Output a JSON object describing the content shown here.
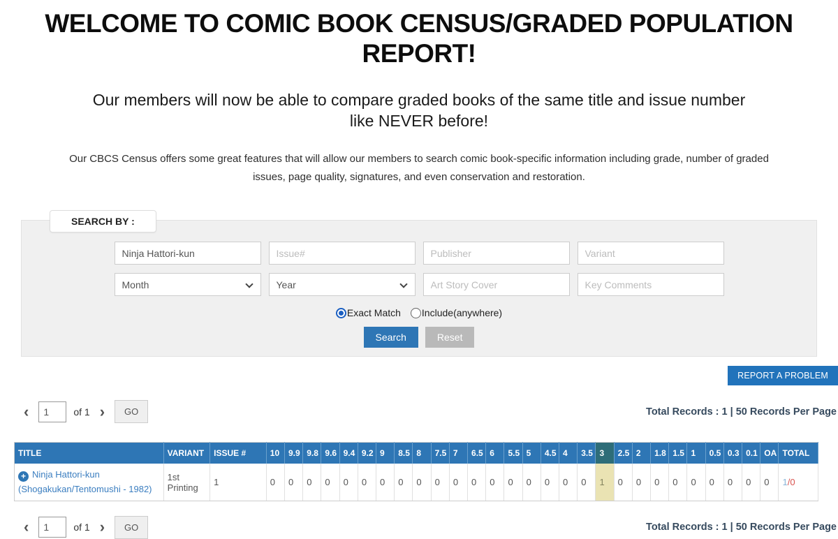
{
  "page": {
    "title": "WELCOME TO COMIC BOOK CENSUS/GRADED POPULATION REPORT!",
    "subtitle": "Our members will now be able to compare graded books of the same title and issue number like NEVER before!",
    "description": "Our CBCS Census offers some great features that will allow our members to search comic book-specific information including grade, number of graded issues, page quality, signatures, and even conservation and restoration."
  },
  "search": {
    "panel_label": "SEARCH BY :",
    "title_value": "Ninja Hattori-kun",
    "issue_placeholder": "Issue#",
    "publisher_placeholder": "Publisher",
    "variant_placeholder": "Variant",
    "month_selected": "Month",
    "year_selected": "Year",
    "art_placeholder": "Art Story Cover",
    "key_placeholder": "Key Comments",
    "match_options": [
      {
        "label": "Exact Match",
        "selected": true
      },
      {
        "label": "Include(anywhere)",
        "selected": false
      }
    ],
    "search_button": "Search",
    "reset_button": "Reset"
  },
  "report_button": "REPORT A PROBLEM",
  "pagination": {
    "page_value": "1",
    "of_label": "of 1",
    "go_label": "GO",
    "prev_icon": "‹",
    "next_icon": "›"
  },
  "records_summary": "Total Records : 1 | 50 Records Per Page",
  "table": {
    "title_column": "TITLE",
    "variant_column": "VARIANT",
    "issue_column": "ISSUE #",
    "total_column": "TOTAL",
    "grade_columns": [
      "10",
      "9.9",
      "9.8",
      "9.6",
      "9.4",
      "9.2",
      "9",
      "8.5",
      "8",
      "7.5",
      "7",
      "6.5",
      "6",
      "5.5",
      "5",
      "4.5",
      "4",
      "3.5",
      "3",
      "2.5",
      "2",
      "1.8",
      "1.5",
      "1",
      "0.5",
      "0.3",
      "0.1",
      "OA"
    ],
    "highlight_grade": "3",
    "rows": [
      {
        "title_line1": "Ninja Hattori-kun",
        "title_line2": "(Shogakukan/Tentomushi - 1982)",
        "variant": "1st Printing",
        "issue": "1",
        "grade_values": [
          "0",
          "0",
          "0",
          "0",
          "0",
          "0",
          "0",
          "0",
          "0",
          "0",
          "0",
          "0",
          "0",
          "0",
          "0",
          "0",
          "0",
          "0",
          "1",
          "0",
          "0",
          "0",
          "0",
          "0",
          "0",
          "0",
          "0",
          "0"
        ],
        "total_graded": "1",
        "total_suffix": "/0"
      }
    ]
  },
  "colors": {
    "header_blue": "#2e76b5",
    "highlight_header_teal": "#2e6d78",
    "highlight_cell_yellow": "#eae3b3",
    "report_button_blue": "#2173bb",
    "search_button_blue": "#2e76b5",
    "reset_button_gray": "#b9b9b9",
    "link_blue": "#3b7ec0",
    "total_blue": "#8ab6d9",
    "total_red": "#d9534f"
  }
}
